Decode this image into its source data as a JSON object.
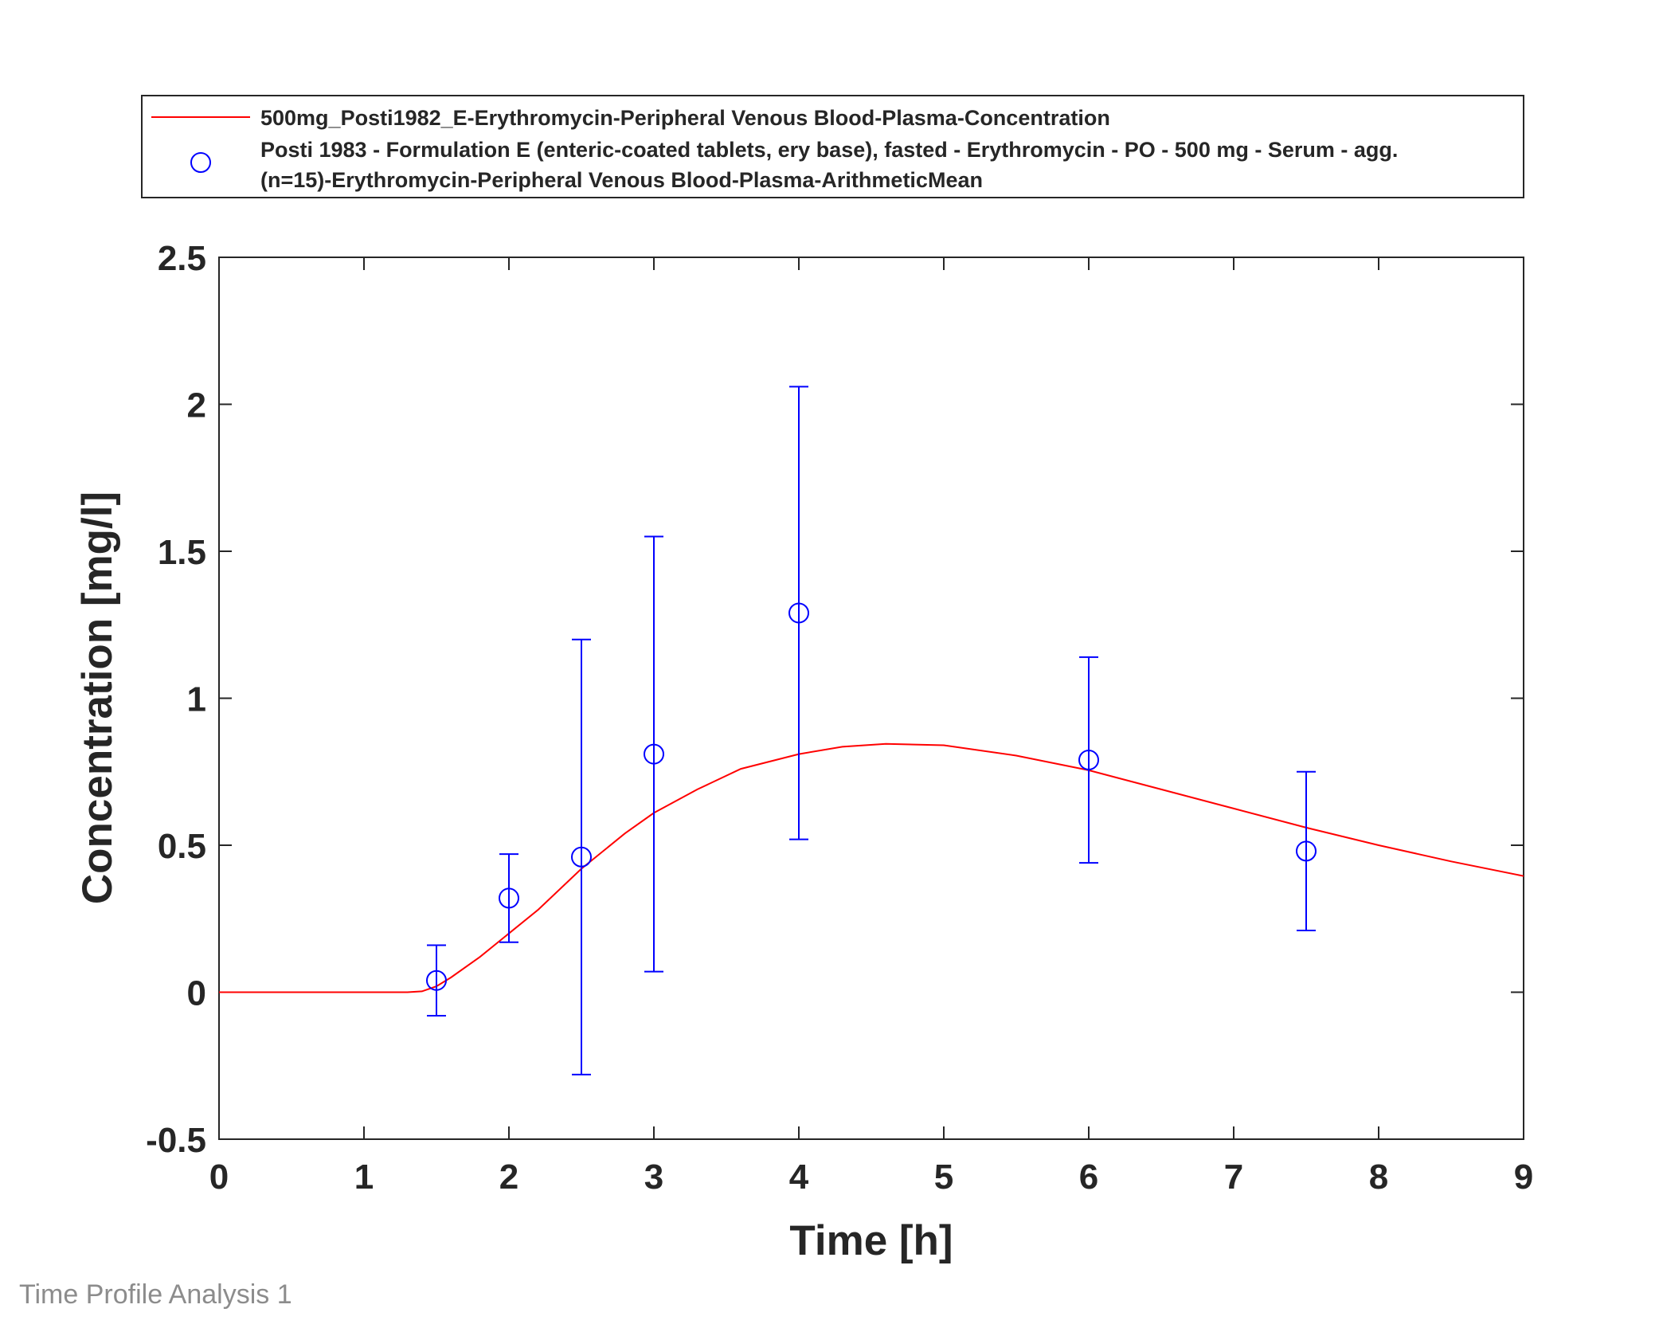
{
  "chart_data": {
    "type": "scatter",
    "xlabel": "Time [h]",
    "ylabel": "Concentration [mg/l]",
    "xlim": [
      0,
      9
    ],
    "ylim": [
      -0.5,
      2.5
    ],
    "xticks": [
      "0",
      "1",
      "2",
      "3",
      "4",
      "5",
      "6",
      "7",
      "8",
      "9"
    ],
    "yticks": [
      "-0.5",
      "0",
      "0.5",
      "1",
      "1.5",
      "2",
      "2.5"
    ],
    "grid": false,
    "legend_position": "top",
    "series": [
      {
        "name": "500mg_Posti1982_E-Erythromycin-Peripheral Venous Blood-Plasma-Concentration",
        "kind": "line",
        "color": "#ff0000",
        "x": [
          0,
          1.0,
          1.3,
          1.4,
          1.5,
          1.6,
          1.8,
          2.0,
          2.2,
          2.5,
          2.8,
          3.0,
          3.3,
          3.6,
          4.0,
          4.3,
          4.6,
          5.0,
          5.5,
          6.0,
          6.5,
          7.0,
          7.5,
          8.0,
          8.5,
          9.0
        ],
        "y": [
          0,
          0,
          0,
          0.003,
          0.02,
          0.05,
          0.12,
          0.2,
          0.28,
          0.42,
          0.54,
          0.61,
          0.69,
          0.76,
          0.81,
          0.835,
          0.845,
          0.84,
          0.805,
          0.755,
          0.69,
          0.625,
          0.56,
          0.5,
          0.445,
          0.395
        ]
      },
      {
        "name_lines": [
          "Posti 1983 - Formulation E (enteric-coated tablets, ery base), fasted - Erythromycin - PO - 500 mg - Serum - agg.",
          "(n=15)-Erythromycin-Peripheral Venous Blood-Plasma-ArithmeticMean"
        ],
        "kind": "scatter",
        "marker": "circle",
        "color": "#0000ff",
        "x": [
          1.5,
          2.0,
          2.5,
          3.0,
          4.0,
          6.0,
          7.5
        ],
        "y": [
          0.04,
          0.32,
          0.46,
          0.81,
          1.29,
          0.79,
          0.48
        ],
        "err_low": [
          -0.08,
          0.17,
          -0.28,
          0.07,
          0.52,
          0.44,
          0.21
        ],
        "err_high": [
          0.16,
          0.47,
          1.2,
          1.55,
          2.06,
          1.14,
          0.75
        ]
      }
    ]
  },
  "footer": "Time Profile Analysis 1"
}
